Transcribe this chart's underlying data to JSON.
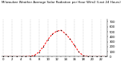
{
  "title1": "Milwaukee Weather Average Solar Radiation per Hour W/m2 (Last 24 Hours)",
  "title2": "Milwaukee Weather",
  "hours": [
    0,
    1,
    2,
    3,
    4,
    5,
    6,
    7,
    8,
    9,
    10,
    11,
    12,
    13,
    14,
    15,
    16,
    17,
    18,
    19,
    20,
    21,
    22,
    23
  ],
  "values": [
    0,
    0,
    0,
    0,
    0,
    2,
    5,
    25,
    90,
    200,
    340,
    450,
    510,
    530,
    460,
    360,
    230,
    95,
    18,
    2,
    0,
    0,
    0,
    0
  ],
  "line_color": "#ff0000",
  "bg_color": "#ffffff",
  "grid_color": "#999999",
  "ytick_vals": [
    0,
    100,
    200,
    300,
    400,
    500,
    600,
    700
  ],
  "ytick_labels": [
    "0",
    "1",
    "2",
    "3",
    "4",
    "5",
    "6",
    "7"
  ],
  "ylim": [
    0,
    750
  ],
  "xlim": [
    -0.5,
    23.5
  ],
  "title_fontsize": 2.8,
  "tick_fontsize": 2.8,
  "linewidth": 0.7,
  "markersize": 1.2
}
